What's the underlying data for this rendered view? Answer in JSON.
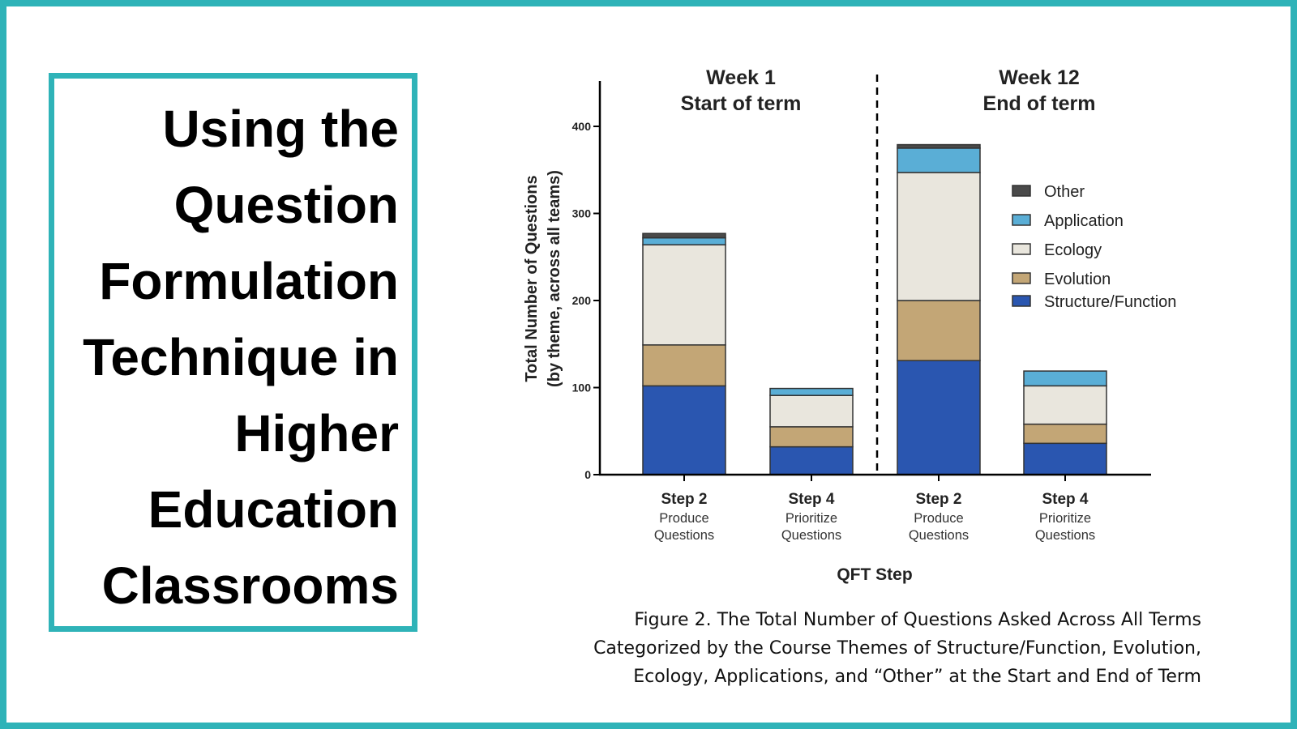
{
  "slide": {
    "title_lines": [
      "Using the",
      "Question",
      "Formulation",
      "Technique in",
      "Higher",
      "Education",
      "Classrooms"
    ],
    "caption_lines": [
      "Figure 2. The Total Number of Questions Asked Across All Terms",
      "Categorized by the Course Themes of Structure/Function, Evolution,",
      "Ecology, Applications, and “Other” at the Start and End of Term"
    ],
    "border_color": "#2fb3b8"
  },
  "chart_data": {
    "type": "bar",
    "stacked": true,
    "ylabel_lines": [
      "Total Number of Questions",
      "(by theme, across all teams)"
    ],
    "xlabel": "QFT Step",
    "ylim": [
      0,
      400
    ],
    "yticks": [
      0,
      100,
      200,
      300,
      400
    ],
    "groups": [
      {
        "label_lines": [
          "Week 1",
          "Start of term"
        ]
      },
      {
        "label_lines": [
          "Week 12",
          "End of term"
        ]
      }
    ],
    "categories": [
      {
        "step": "Step 2",
        "desc": [
          "Produce",
          "Questions"
        ]
      },
      {
        "step": "Step 4",
        "desc": [
          "Prioritize",
          "Questions"
        ]
      },
      {
        "step": "Step 2",
        "desc": [
          "Produce",
          "Questions"
        ]
      },
      {
        "step": "Step 4",
        "desc": [
          "Prioritize",
          "Questions"
        ]
      }
    ],
    "series": [
      {
        "name": "Structure/Function",
        "color": "#2a56b0",
        "values": [
          102,
          32,
          131,
          36
        ]
      },
      {
        "name": "Evolution",
        "color": "#c3a676",
        "values": [
          47,
          23,
          69,
          22
        ]
      },
      {
        "name": "Ecology",
        "color": "#e9e6dd",
        "values": [
          115,
          36,
          147,
          44
        ]
      },
      {
        "name": "Application",
        "color": "#5aaed6",
        "values": [
          8,
          8,
          28,
          17
        ]
      },
      {
        "name": "Other",
        "color": "#4a4a4a",
        "values": [
          5,
          0,
          4,
          0
        ]
      }
    ],
    "legend_order": [
      "Other",
      "Application",
      "Ecology",
      "Evolution",
      "Structure/Function"
    ],
    "legend_position": "right"
  }
}
